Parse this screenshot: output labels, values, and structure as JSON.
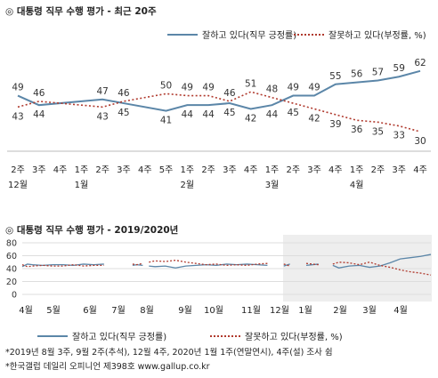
{
  "chart_data": [
    {
      "type": "line",
      "title": "◎ 대통령 직무 수행 평가 - 최근 20주",
      "legend_position": "top-right",
      "ylim": [
        25,
        70
      ],
      "x_ticks": [
        {
          "week": "2주",
          "month": "12월"
        },
        {
          "week": "3주",
          "month": ""
        },
        {
          "week": "4주",
          "month": ""
        },
        {
          "week": "1주",
          "month": "1월"
        },
        {
          "week": "2주",
          "month": ""
        },
        {
          "week": "3주",
          "month": ""
        },
        {
          "week": "4주",
          "month": ""
        },
        {
          "week": "5주",
          "month": ""
        },
        {
          "week": "1주",
          "month": "2월"
        },
        {
          "week": "2주",
          "month": ""
        },
        {
          "week": "3주",
          "month": ""
        },
        {
          "week": "4주",
          "month": ""
        },
        {
          "week": "1주",
          "month": "3월"
        },
        {
          "week": "2주",
          "month": ""
        },
        {
          "week": "3주",
          "month": ""
        },
        {
          "week": "4주",
          "month": ""
        },
        {
          "week": "1주",
          "month": "4월"
        },
        {
          "week": "2주",
          "month": ""
        },
        {
          "week": "3주",
          "month": ""
        },
        {
          "week": "4주",
          "month": ""
        }
      ],
      "series": [
        {
          "name": "잘하고 있다(직무 긍정률)",
          "color": "#5b86a8",
          "style": "solid",
          "values": [
            49,
            44,
            null,
            null,
            47,
            45,
            null,
            41,
            44,
            44,
            45,
            42,
            44,
            49,
            49,
            55,
            56,
            57,
            59,
            62
          ]
        },
        {
          "name": "잘못하고 있다(부정률, %)",
          "color": "#b03a2e",
          "style": "dotted",
          "values": [
            43,
            46,
            null,
            null,
            43,
            46,
            null,
            50,
            49,
            49,
            46,
            51,
            48,
            45,
            42,
            39,
            36,
            35,
            33,
            30
          ]
        }
      ]
    },
    {
      "type": "line",
      "title": "◎ 대통령 직무 수행 평가 - 2019/2020년",
      "ylim": [
        0,
        80
      ],
      "yticks": [
        0,
        20,
        40,
        60,
        80
      ],
      "grid": true,
      "legend_position": "bottom",
      "x_months": [
        "4월",
        "5월",
        "6월",
        "7월",
        "8월",
        "9월",
        "10월",
        "11월",
        "12월",
        "1월",
        "2월",
        "3월",
        "4월"
      ],
      "highlight": "recent 20 weeks (shaded)",
      "series": [
        {
          "name": "잘하고 있다(직무 긍정률)",
          "color": "#5b86a8",
          "style": "solid",
          "segments": [
            [
              [
                0,
                43
              ],
              [
                0.25,
                47
              ],
              [
                0.5,
                46
              ],
              [
                1,
                45
              ],
              [
                1.5,
                46
              ],
              [
                2,
                46
              ],
              [
                2.5,
                45
              ],
              [
                3,
                47
              ],
              [
                3.5,
                46
              ],
              [
                4,
                47
              ]
            ],
            [
              [
                5.4,
                45
              ],
              [
                5.6,
                46
              ],
              [
                5.9,
                45
              ]
            ],
            [
              [
                6.2,
                44
              ],
              [
                6.5,
                43
              ],
              [
                7,
                44
              ],
              [
                7.5,
                41
              ],
              [
                8,
                44
              ],
              [
                8.5,
                45
              ],
              [
                9,
                46
              ],
              [
                9.5,
                45
              ],
              [
                10,
                47
              ],
              [
                10.5,
                46
              ],
              [
                11,
                47
              ],
              [
                11.5,
                46
              ],
              [
                12,
                45
              ]
            ],
            [
              [
                12.8,
                44
              ],
              [
                13.1,
                47
              ]
            ],
            [
              [
                13.9,
                45
              ],
              [
                14.5,
                47
              ]
            ],
            [
              [
                15.2,
                45
              ],
              [
                15.5,
                41
              ],
              [
                16,
                44
              ],
              [
                16.5,
                45
              ],
              [
                17,
                42
              ],
              [
                17.5,
                44
              ],
              [
                18,
                49
              ],
              [
                18.5,
                55
              ],
              [
                19,
                57
              ],
              [
                19.5,
                59
              ],
              [
                20,
                62
              ]
            ]
          ]
        },
        {
          "name": "잘못하고 있다(부정률, %)",
          "color": "#b03a2e",
          "style": "dotted",
          "segments": [
            [
              [
                0,
                46
              ],
              [
                0.25,
                43
              ],
              [
                0.5,
                44
              ],
              [
                1,
                45
              ],
              [
                1.5,
                44
              ],
              [
                2,
                44
              ],
              [
                2.5,
                46
              ],
              [
                3,
                44
              ],
              [
                3.5,
                45
              ],
              [
                4,
                45
              ]
            ],
            [
              [
                5.4,
                47
              ],
              [
                5.6,
                46
              ],
              [
                5.9,
                48
              ]
            ],
            [
              [
                6.2,
                50
              ],
              [
                6.5,
                52
              ],
              [
                7,
                51
              ],
              [
                7.5,
                53
              ],
              [
                8,
                50
              ],
              [
                8.5,
                48
              ],
              [
                9,
                46
              ],
              [
                9.5,
                47
              ],
              [
                10,
                45
              ],
              [
                10.5,
                46
              ],
              [
                11,
                45
              ],
              [
                11.5,
                47
              ],
              [
                12,
                48
              ]
            ],
            [
              [
                12.8,
                47
              ],
              [
                13.1,
                44
              ]
            ],
            [
              [
                13.9,
                48
              ],
              [
                14.5,
                46
              ]
            ],
            [
              [
                15.2,
                47
              ],
              [
                15.5,
                50
              ],
              [
                16,
                49
              ],
              [
                16.5,
                46
              ],
              [
                17,
                50
              ],
              [
                17.5,
                45
              ],
              [
                18,
                42
              ],
              [
                18.5,
                38
              ],
              [
                19,
                35
              ],
              [
                19.5,
                33
              ],
              [
                20,
                30
              ]
            ]
          ]
        }
      ]
    }
  ],
  "legend": {
    "positive": "잘하고 있다(직무 긍정률)",
    "negative": "잘못하고 있다(부정률, %)"
  },
  "footnotes": [
    "*2019년 8월 3주, 9월 2주(추석), 12월 4주, 2020년 1월 1주(연말연시), 4주(설) 조사 쉼",
    "*한국갤럽 데일리 오피니언 제398호 www.gallup.co.kr"
  ]
}
